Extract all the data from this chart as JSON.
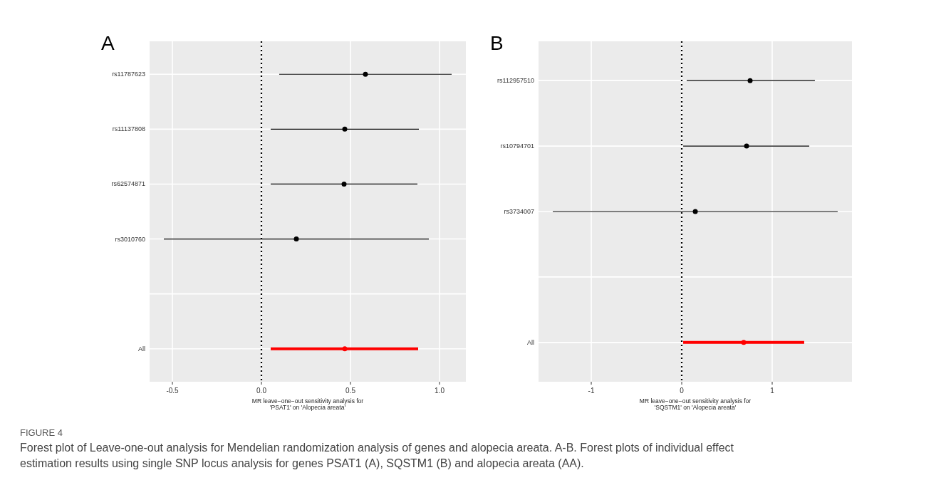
{
  "chart_data": [
    {
      "type": "scatter",
      "orientation": "horizontal",
      "title": "A",
      "xlabel": "MR leave−one−out sensitivity analysis for\n'PSAT1' on 'Alopecia areata'",
      "categories": [
        "rs11787623",
        "rs11137808",
        "rs62574871",
        "rs3010760",
        null,
        "All"
      ],
      "series": [
        {
          "color": "#000000",
          "values": [
            0.584,
            0.468,
            0.464,
            0.196,
            null,
            null
          ],
          "errors": [
            [
              0.1,
              1.068
            ],
            [
              0.052,
              0.884
            ],
            [
              0.052,
              0.876
            ],
            [
              -0.548,
              0.94
            ],
            null,
            null
          ]
        },
        {
          "color": "#ff0000",
          "values": [
            null,
            null,
            null,
            null,
            null,
            0.468
          ],
          "errors": [
            null,
            null,
            null,
            null,
            null,
            [
              0.052,
              0.88
            ]
          ]
        }
      ],
      "xlim": [
        -0.628,
        1.148
      ],
      "xticks": [
        -0.5,
        {
          "value": 0,
          "label": "0.0"
        },
        0.5,
        {
          "value": 1,
          "label": "1.0"
        }
      ],
      "ref_lines": [
        {
          "axis": "x",
          "value": 0,
          "line_style": "dotted",
          "color": "#000000"
        }
      ],
      "grid": true,
      "marker": "circle",
      "annotations": [
        "FIGURE 4",
        "Forest plot of Leave-one-out analysis for Mendelian randomization analysis of genes and alopecia areata. A-B. Forest plots of individual effect estimation results using single SNP locus analysis for genes PSAT1 (A), SQSTM1 (B) and alopecia areata (AA)."
      ]
    },
    {
      "type": "scatter",
      "orientation": "horizontal",
      "title": "B",
      "xlabel": "MR leave−one−out sensitivity analysis for\n'SQSTM1' on 'Alopecia areata'",
      "categories": [
        "rs112957510",
        "rs10794701",
        "rs3734007",
        null,
        "All"
      ],
      "series": [
        {
          "color": "#000000",
          "values": [
            0.756,
            0.717,
            0.15,
            null,
            null
          ],
          "errors": [
            [
              0.055,
              1.472
            ],
            [
              0.016,
              1.41
            ],
            [
              -1.425,
              1.724
            ],
            null,
            null
          ]
        },
        {
          "color": "#ff0000",
          "values": [
            null,
            null,
            null,
            null,
            0.685
          ],
          "errors": [
            null,
            null,
            null,
            null,
            [
              0.016,
              1.354
            ]
          ]
        }
      ],
      "xlim": [
        -1.583,
        1.882
      ],
      "xticks": [
        -1,
        0,
        1
      ],
      "ref_lines": [
        {
          "axis": "x",
          "value": 0,
          "line_style": "dotted",
          "color": "#000000"
        }
      ],
      "grid": true,
      "marker": "circle"
    }
  ]
}
